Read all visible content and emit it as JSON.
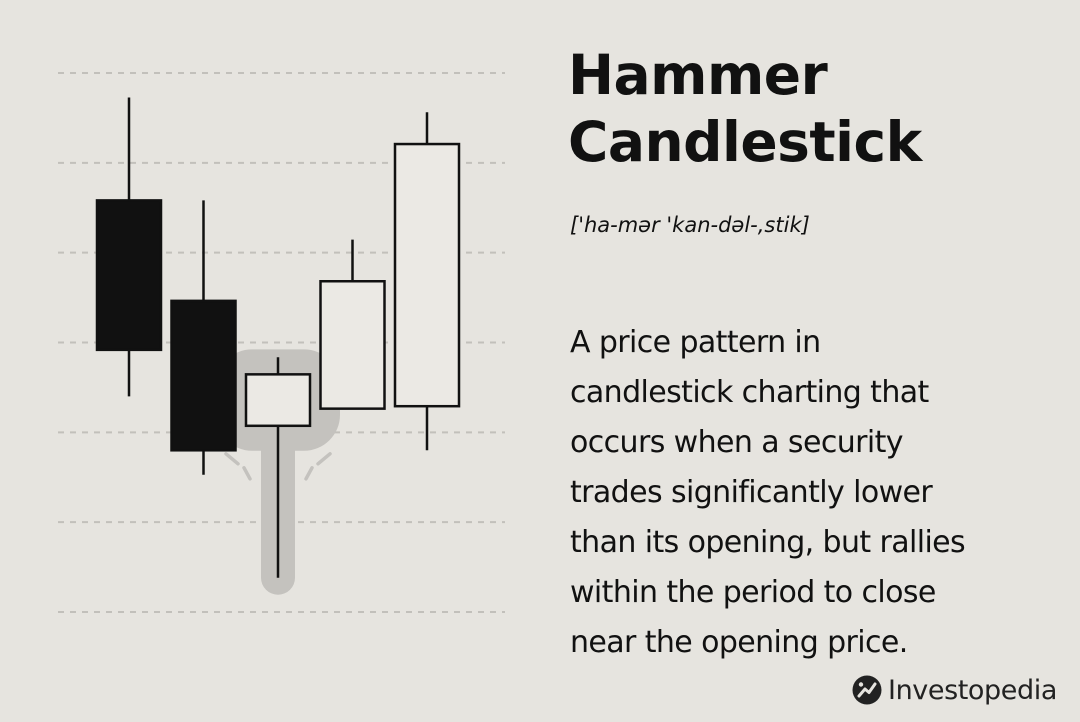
{
  "chart_data": {
    "type": "candlestick",
    "title": "Hammer Candlestick",
    "subtitle": "['ha-mər 'kan-dəl-,stik]",
    "xlabel": "",
    "ylabel": "",
    "ylim": [
      0,
      11
    ],
    "grid": true,
    "highlighted_candle": 3,
    "candles": [
      {
        "open": 8.4,
        "close": 5.35,
        "high": 10.5,
        "low": 4.4,
        "bearish": true
      },
      {
        "open": 6.35,
        "close": 3.3,
        "high": 8.4,
        "low": 2.8,
        "bearish": true
      },
      {
        "open": 3.8,
        "close": 4.85,
        "high": 5.2,
        "low": 0.7,
        "bearish": false
      },
      {
        "open": 4.15,
        "close": 6.75,
        "high": 7.6,
        "low": 4.15,
        "bearish": false
      },
      {
        "open": 4.2,
        "close": 9.55,
        "high": 10.2,
        "low": 3.3,
        "bearish": false
      }
    ]
  },
  "heading": {
    "line1": "Hammer",
    "line2": "Candlestick"
  },
  "pronunciation": "['ha-mər 'kan-dəl-,stik]",
  "definition_lines": [
    "A price pattern in",
    "candlestick charting that",
    "occurs when a security",
    "trades significantly lower",
    "than its opening, but rallies",
    "within the period to close",
    "near the opening price."
  ],
  "brand": {
    "name": "Investopedia",
    "icon": "investopedia-logo-icon"
  },
  "colors": {
    "background": "#e6e4df",
    "ink": "#111111",
    "grid": "#c2c0bb",
    "highlight": "#c4c2be",
    "hollow_fill": "#ebe9e4"
  }
}
